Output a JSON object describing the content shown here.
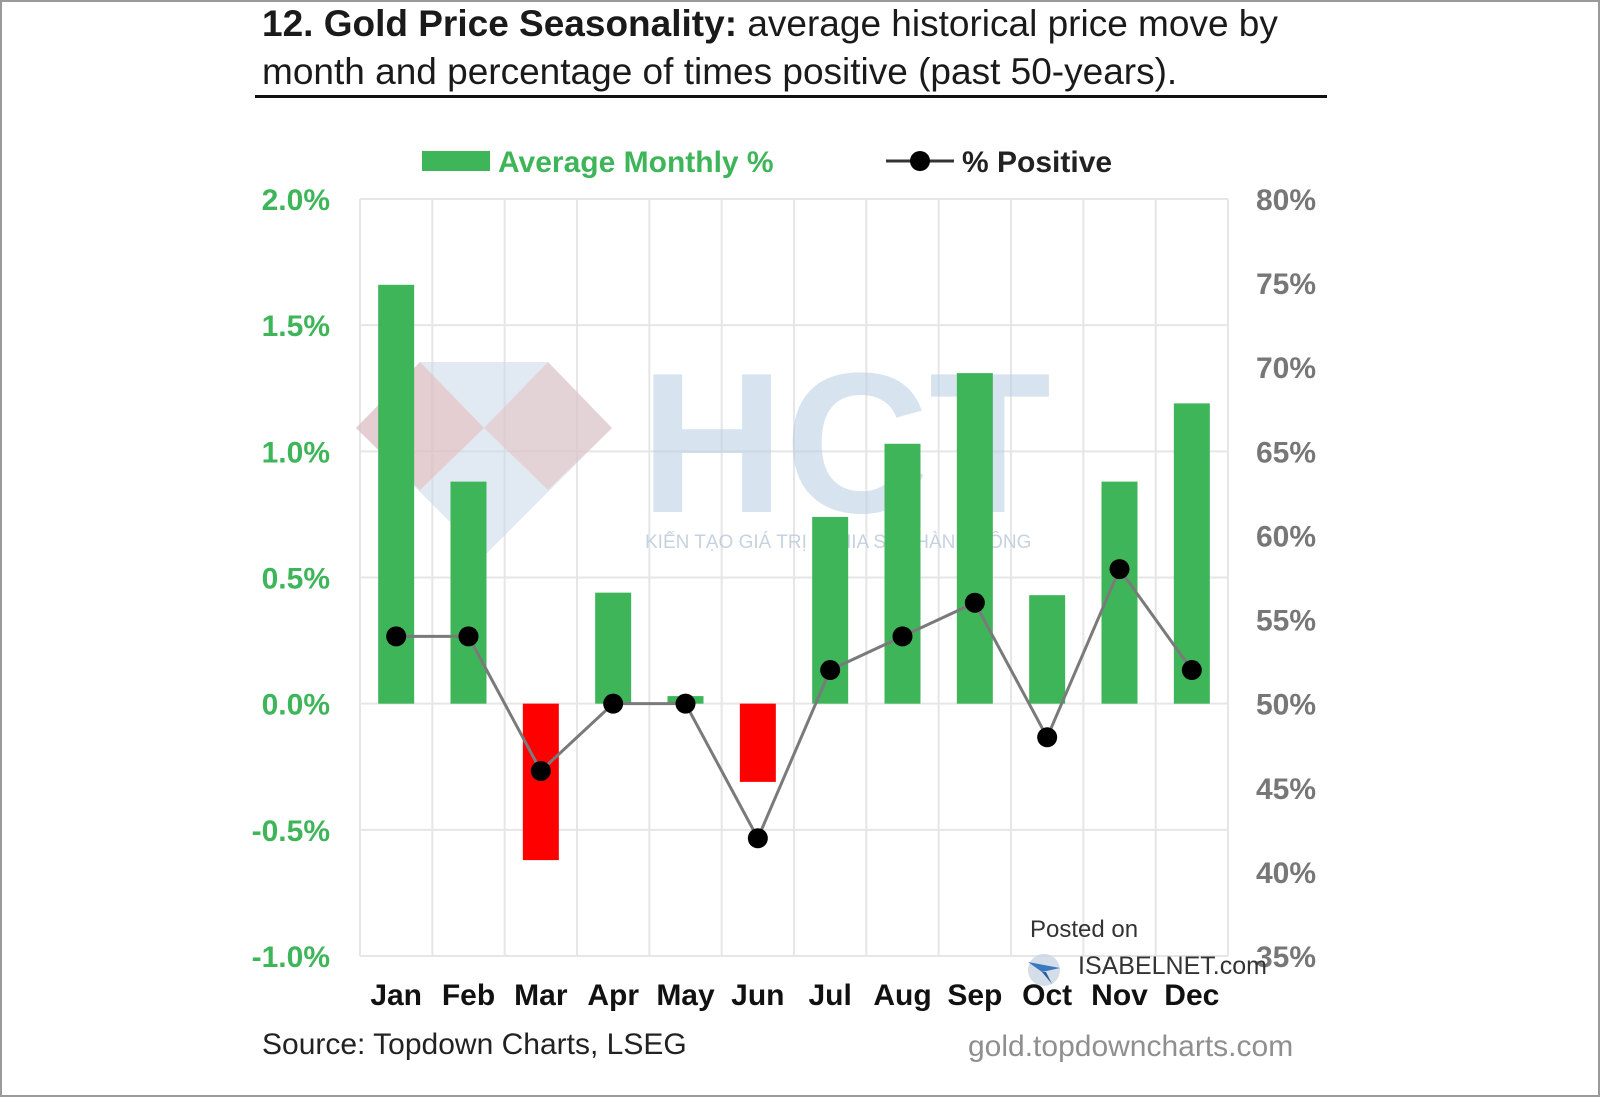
{
  "header": {
    "title_bold": "12. Gold Price Seasonality:",
    "title_rest": "average historical price move by month and percentage of times positive (past 50-years)."
  },
  "footer": {
    "source": "Source: Topdown Charts, LSEG",
    "site": "gold.topdowncharts.com"
  },
  "watermarks": {
    "hct_logo": "HCT",
    "hct_tagline": "KIẾN TẠO GIÁ TRỊ - CHIA SẺ THÀNH CÔNG",
    "posted_on": "Posted on",
    "isabelnet": "ISABELNET.com"
  },
  "colors": {
    "positive_bar": "#3fb55a",
    "negative_bar": "#ff0000",
    "line": "#7a7a7a",
    "marker": "#000000",
    "left_axis_text": "#3fb55a",
    "right_axis_text": "#777777",
    "grid": "#e6e6e6"
  },
  "chart_data": {
    "type": "bar",
    "categories": [
      "Jan",
      "Feb",
      "Mar",
      "Apr",
      "May",
      "Jun",
      "Jul",
      "Aug",
      "Sep",
      "Oct",
      "Nov",
      "Dec"
    ],
    "series": [
      {
        "name": "Average Monthly %",
        "type": "bar",
        "axis": "left",
        "values": [
          1.66,
          0.88,
          -0.62,
          0.44,
          0.03,
          -0.31,
          0.74,
          1.03,
          1.31,
          0.43,
          0.88,
          1.19
        ]
      },
      {
        "name": "% Positive",
        "type": "line",
        "axis": "right",
        "values": [
          54,
          54,
          46,
          50,
          50,
          42,
          52,
          54,
          56,
          48,
          58,
          52
        ]
      }
    ],
    "left_axis": {
      "ylim": [
        -1.0,
        2.0
      ],
      "ticks": [
        2.0,
        1.5,
        1.0,
        0.5,
        0.0,
        -0.5,
        -1.0
      ],
      "tick_labels": [
        "2.0%",
        "1.5%",
        "1.0%",
        "0.5%",
        "0.0%",
        "-0.5%",
        "-1.0%"
      ]
    },
    "right_axis": {
      "ylim": [
        35,
        80
      ],
      "ticks": [
        80,
        75,
        70,
        65,
        60,
        55,
        50,
        45,
        40,
        35
      ],
      "tick_labels": [
        "80%",
        "75%",
        "70%",
        "65%",
        "60%",
        "55%",
        "50%",
        "45%",
        "40%",
        "35%"
      ]
    },
    "grid": true,
    "legend_position": "top"
  }
}
